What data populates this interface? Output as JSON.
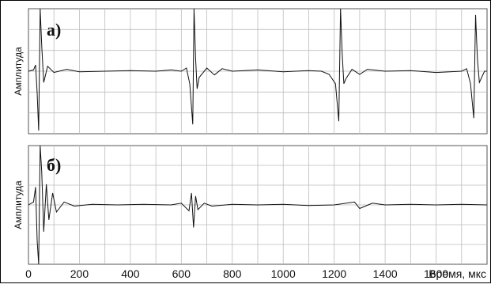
{
  "chart_data": [
    {
      "type": "line",
      "panel_label": "а)",
      "ylabel": "Амплитуда",
      "xlabel": "Время, мкс",
      "xlim": [
        0,
        1800
      ],
      "ylim": [
        -1,
        1
      ],
      "grid": true,
      "x": [
        0,
        20,
        28,
        34,
        40,
        46,
        52,
        60,
        75,
        100,
        150,
        200,
        300,
        400,
        500,
        560,
        600,
        620,
        633,
        645,
        650,
        656,
        662,
        670,
        700,
        730,
        760,
        800,
        900,
        1000,
        1100,
        1150,
        1180,
        1205,
        1218,
        1225,
        1231,
        1238,
        1246,
        1270,
        1300,
        1330,
        1400,
        1500,
        1600,
        1700,
        1720,
        1735,
        1748,
        1755,
        1762,
        1770,
        1790,
        1800
      ],
      "y": [
        0.0,
        0.02,
        0.1,
        -0.35,
        -0.95,
        1.0,
        0.4,
        -0.18,
        0.08,
        -0.02,
        0.03,
        -0.01,
        0.0,
        0.01,
        0.0,
        0.02,
        0.0,
        0.05,
        -0.2,
        -0.85,
        1.0,
        0.2,
        -0.28,
        -0.1,
        0.05,
        -0.06,
        0.04,
        0.0,
        0.02,
        -0.01,
        0.01,
        0.0,
        -0.05,
        -0.2,
        -0.8,
        1.0,
        0.3,
        -0.2,
        -0.12,
        0.03,
        -0.05,
        0.03,
        0.0,
        0.01,
        -0.02,
        0.0,
        0.04,
        -0.2,
        -0.75,
        0.9,
        0.2,
        -0.18,
        0.0,
        0.0
      ]
    },
    {
      "type": "line",
      "panel_label": "б)",
      "ylabel": "Амплитуда",
      "xlabel": "Время, мкс",
      "xlim": [
        0,
        1800
      ],
      "ylim": [
        -1,
        1
      ],
      "grid": true,
      "x": [
        0,
        20,
        28,
        34,
        40,
        46,
        52,
        60,
        70,
        80,
        95,
        110,
        140,
        180,
        250,
        350,
        450,
        560,
        600,
        630,
        640,
        648,
        656,
        665,
        690,
        720,
        800,
        900,
        1000,
        1100,
        1200,
        1280,
        1300,
        1350,
        1400,
        1500,
        1600,
        1700,
        1800
      ],
      "y": [
        0.0,
        0.05,
        0.3,
        -0.6,
        -1.0,
        1.0,
        0.55,
        -0.45,
        0.35,
        -0.25,
        0.2,
        -0.12,
        0.05,
        -0.02,
        0.01,
        0.0,
        0.01,
        0.0,
        0.03,
        -0.1,
        0.2,
        -0.38,
        0.15,
        -0.08,
        0.03,
        -0.02,
        0.01,
        0.0,
        0.01,
        -0.01,
        0.0,
        0.05,
        -0.06,
        0.03,
        0.0,
        0.01,
        0.0,
        0.01,
        0.0
      ]
    }
  ],
  "x_ticks": [
    "0",
    "200",
    "400",
    "600",
    "800",
    "1000",
    "1200",
    "1400",
    "1600"
  ],
  "colors": {
    "line": "#111111",
    "grid": "#bdbdbd",
    "axis": "#555555"
  }
}
